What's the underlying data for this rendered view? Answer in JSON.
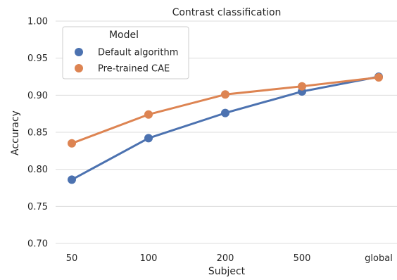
{
  "chart_data": {
    "type": "line",
    "title": "Contrast classification",
    "xlabel": "Subject",
    "ylabel": "Accuracy",
    "categories": [
      "50",
      "100",
      "200",
      "500",
      "global"
    ],
    "ylim": [
      0.7,
      1.0
    ],
    "yticks": [
      "0.70",
      "0.75",
      "0.80",
      "0.85",
      "0.90",
      "0.95",
      "1.00"
    ],
    "grid": "horizontal",
    "legend": {
      "title": "Model",
      "placement": "upper-left"
    },
    "series": [
      {
        "name": "Default algorithm",
        "color": "#4c72b0",
        "values": [
          0.786,
          0.842,
          0.876,
          0.905,
          0.925
        ]
      },
      {
        "name": "Pre-trained CAE",
        "color": "#dd8452",
        "values": [
          0.835,
          0.874,
          0.901,
          0.912,
          0.924
        ]
      }
    ]
  }
}
